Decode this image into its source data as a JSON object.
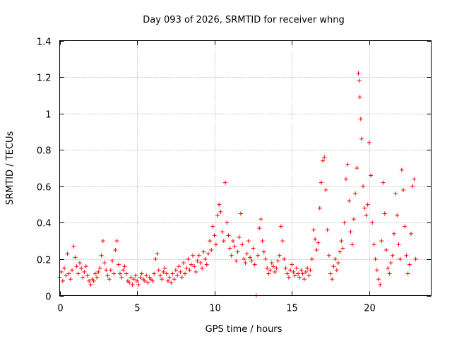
{
  "chart_data": {
    "type": "scatter",
    "title": "Day 093 of 2026, SRMTID for receiver whng",
    "xlabel": "GPS time / hours",
    "ylabel": "SRMTID / TECUs",
    "xlim": [
      0,
      24
    ],
    "ylim": [
      0,
      1.4
    ],
    "xticks": [
      0,
      5,
      10,
      15,
      20
    ],
    "xtick_labels": [
      "0",
      "5",
      "10",
      "15",
      "20"
    ],
    "yticks": [
      0,
      0.2,
      0.4,
      0.6,
      0.8,
      1,
      1.2,
      1.4
    ],
    "ytick_labels": [
      "0",
      "0.2",
      "0.4",
      "0.6",
      "0.8",
      "1",
      "1.2",
      "1.4"
    ],
    "grid": true,
    "marker": "+",
    "series": [
      {
        "name": "SRMTID",
        "color": "#ff0000",
        "points": [
          [
            0.0,
            0.1
          ],
          [
            0.1,
            0.13
          ],
          [
            0.2,
            0.08
          ],
          [
            0.3,
            0.15
          ],
          [
            0.4,
            0.11
          ],
          [
            0.5,
            0.23
          ],
          [
            0.6,
            0.12
          ],
          [
            0.7,
            0.09
          ],
          [
            0.8,
            0.14
          ],
          [
            0.9,
            0.27
          ],
          [
            1.0,
            0.21
          ],
          [
            1.1,
            0.16
          ],
          [
            1.2,
            0.12
          ],
          [
            1.3,
            0.18
          ],
          [
            1.4,
            0.15
          ],
          [
            1.5,
            0.1
          ],
          [
            1.6,
            0.13
          ],
          [
            1.7,
            0.16
          ],
          [
            1.8,
            0.11
          ],
          [
            1.9,
            0.08
          ],
          [
            2.0,
            0.06
          ],
          [
            2.1,
            0.09
          ],
          [
            2.2,
            0.08
          ],
          [
            2.3,
            0.12
          ],
          [
            2.4,
            0.1
          ],
          [
            2.5,
            0.13
          ],
          [
            2.6,
            0.15
          ],
          [
            2.7,
            0.22
          ],
          [
            2.8,
            0.3
          ],
          [
            2.9,
            0.18
          ],
          [
            3.0,
            0.14
          ],
          [
            3.1,
            0.11
          ],
          [
            3.2,
            0.09
          ],
          [
            3.3,
            0.14
          ],
          [
            3.4,
            0.19
          ],
          [
            3.5,
            0.12
          ],
          [
            3.6,
            0.25
          ],
          [
            3.7,
            0.3
          ],
          [
            3.8,
            0.17
          ],
          [
            3.9,
            0.12
          ],
          [
            4.0,
            0.1
          ],
          [
            4.1,
            0.14
          ],
          [
            4.2,
            0.16
          ],
          [
            4.3,
            0.12
          ],
          [
            4.4,
            0.08
          ],
          [
            4.5,
            0.07
          ],
          [
            4.6,
            0.1
          ],
          [
            4.7,
            0.06
          ],
          [
            4.8,
            0.09
          ],
          [
            4.9,
            0.11
          ],
          [
            5.0,
            0.08
          ],
          [
            5.1,
            0.06
          ],
          [
            5.2,
            0.1
          ],
          [
            5.3,
            0.12
          ],
          [
            5.4,
            0.09
          ],
          [
            5.5,
            0.08
          ],
          [
            5.6,
            0.11
          ],
          [
            5.7,
            0.07
          ],
          [
            5.8,
            0.1
          ],
          [
            5.9,
            0.09
          ],
          [
            6.0,
            0.08
          ],
          [
            6.1,
            0.12
          ],
          [
            6.2,
            0.2
          ],
          [
            6.3,
            0.23
          ],
          [
            6.4,
            0.14
          ],
          [
            6.5,
            0.11
          ],
          [
            6.6,
            0.09
          ],
          [
            6.7,
            0.13
          ],
          [
            6.8,
            0.15
          ],
          [
            6.9,
            0.12
          ],
          [
            7.0,
            0.08
          ],
          [
            7.1,
            0.1
          ],
          [
            7.2,
            0.07
          ],
          [
            7.3,
            0.12
          ],
          [
            7.4,
            0.09
          ],
          [
            7.5,
            0.14
          ],
          [
            7.6,
            0.11
          ],
          [
            7.7,
            0.16
          ],
          [
            7.8,
            0.13
          ],
          [
            7.9,
            0.1
          ],
          [
            8.0,
            0.18
          ],
          [
            8.1,
            0.12
          ],
          [
            8.2,
            0.15
          ],
          [
            8.3,
            0.2
          ],
          [
            8.4,
            0.14
          ],
          [
            8.5,
            0.17
          ],
          [
            8.6,
            0.22
          ],
          [
            8.7,
            0.16
          ],
          [
            8.8,
            0.13
          ],
          [
            8.9,
            0.19
          ],
          [
            9.0,
            0.22
          ],
          [
            9.1,
            0.18
          ],
          [
            9.2,
            0.15
          ],
          [
            9.3,
            0.24
          ],
          [
            9.4,
            0.2
          ],
          [
            9.5,
            0.17
          ],
          [
            9.6,
            0.23
          ],
          [
            9.7,
            0.3
          ],
          [
            9.8,
            0.25
          ],
          [
            9.9,
            0.38
          ],
          [
            10.0,
            0.33
          ],
          [
            10.1,
            0.28
          ],
          [
            10.2,
            0.44
          ],
          [
            10.3,
            0.5
          ],
          [
            10.4,
            0.46
          ],
          [
            10.5,
            0.35
          ],
          [
            10.6,
            0.3
          ],
          [
            10.7,
            0.62
          ],
          [
            10.8,
            0.4
          ],
          [
            10.9,
            0.33
          ],
          [
            11.0,
            0.26
          ],
          [
            11.1,
            0.22
          ],
          [
            11.2,
            0.3
          ],
          [
            11.3,
            0.27
          ],
          [
            11.4,
            0.19
          ],
          [
            11.5,
            0.24
          ],
          [
            11.6,
            0.32
          ],
          [
            11.7,
            0.45
          ],
          [
            11.8,
            0.28
          ],
          [
            11.9,
            0.2
          ],
          [
            12.0,
            0.18
          ],
          [
            12.1,
            0.23
          ],
          [
            12.2,
            0.3
          ],
          [
            12.3,
            0.21
          ],
          [
            12.4,
            0.19
          ],
          [
            12.5,
            0.26
          ],
          [
            12.6,
            0.17
          ],
          [
            12.7,
            0.0
          ],
          [
            12.8,
            0.22
          ],
          [
            12.9,
            0.37
          ],
          [
            13.0,
            0.42
          ],
          [
            13.1,
            0.3
          ],
          [
            13.2,
            0.24
          ],
          [
            13.3,
            0.2
          ],
          [
            13.4,
            0.15
          ],
          [
            13.5,
            0.12
          ],
          [
            13.6,
            0.14
          ],
          [
            13.7,
            0.18
          ],
          [
            13.8,
            0.16
          ],
          [
            13.9,
            0.13
          ],
          [
            14.0,
            0.15
          ],
          [
            14.1,
            0.19
          ],
          [
            14.2,
            0.22
          ],
          [
            14.3,
            0.38
          ],
          [
            14.4,
            0.3
          ],
          [
            14.5,
            0.2
          ],
          [
            14.6,
            0.15
          ],
          [
            14.7,
            0.12
          ],
          [
            14.8,
            0.1
          ],
          [
            14.9,
            0.14
          ],
          [
            15.0,
            0.17
          ],
          [
            15.1,
            0.13
          ],
          [
            15.2,
            0.11
          ],
          [
            15.3,
            0.15
          ],
          [
            15.4,
            0.12
          ],
          [
            15.5,
            0.1
          ],
          [
            15.6,
            0.14
          ],
          [
            15.7,
            0.12
          ],
          [
            15.8,
            0.09
          ],
          [
            15.9,
            0.13
          ],
          [
            16.0,
            0.15
          ],
          [
            16.1,
            0.11
          ],
          [
            16.2,
            0.14
          ],
          [
            16.3,
            0.2
          ],
          [
            16.4,
            0.36
          ],
          [
            16.5,
            0.31
          ],
          [
            16.6,
            0.25
          ],
          [
            16.7,
            0.29
          ],
          [
            16.8,
            0.48
          ],
          [
            16.9,
            0.62
          ],
          [
            17.0,
            0.74
          ],
          [
            17.1,
            0.76
          ],
          [
            17.2,
            0.58
          ],
          [
            17.3,
            0.36
          ],
          [
            17.4,
            0.22
          ],
          [
            17.5,
            0.12
          ],
          [
            17.6,
            0.09
          ],
          [
            17.7,
            0.16
          ],
          [
            17.8,
            0.2
          ],
          [
            17.9,
            0.14
          ],
          [
            18.0,
            0.18
          ],
          [
            18.1,
            0.24
          ],
          [
            18.2,
            0.3
          ],
          [
            18.3,
            0.26
          ],
          [
            18.4,
            0.4
          ],
          [
            18.5,
            0.64
          ],
          [
            18.6,
            0.72
          ],
          [
            18.7,
            0.52
          ],
          [
            18.8,
            0.35
          ],
          [
            18.9,
            0.28
          ],
          [
            19.0,
            0.42
          ],
          [
            19.1,
            0.56
          ],
          [
            19.2,
            0.7
          ],
          [
            19.3,
            1.22
          ],
          [
            19.35,
            1.18
          ],
          [
            19.4,
            1.09
          ],
          [
            19.45,
            0.97
          ],
          [
            19.5,
            0.86
          ],
          [
            19.6,
            0.6
          ],
          [
            19.7,
            0.48
          ],
          [
            19.8,
            0.44
          ],
          [
            19.9,
            0.5
          ],
          [
            20.0,
            0.84
          ],
          [
            20.1,
            0.66
          ],
          [
            20.2,
            0.4
          ],
          [
            20.3,
            0.28
          ],
          [
            20.4,
            0.2
          ],
          [
            20.5,
            0.14
          ],
          [
            20.6,
            0.09
          ],
          [
            20.7,
            0.06
          ],
          [
            20.8,
            0.3
          ],
          [
            20.9,
            0.62
          ],
          [
            21.0,
            0.45
          ],
          [
            21.1,
            0.25
          ],
          [
            21.2,
            0.15
          ],
          [
            21.3,
            0.12
          ],
          [
            21.4,
            0.18
          ],
          [
            21.5,
            0.22
          ],
          [
            21.6,
            0.34
          ],
          [
            21.7,
            0.56
          ],
          [
            21.8,
            0.44
          ],
          [
            21.9,
            0.28
          ],
          [
            22.0,
            0.2
          ],
          [
            22.1,
            0.69
          ],
          [
            22.2,
            0.58
          ],
          [
            22.3,
            0.38
          ],
          [
            22.4,
            0.22
          ],
          [
            22.5,
            0.12
          ],
          [
            22.6,
            0.17
          ],
          [
            22.7,
            0.34
          ],
          [
            22.8,
            0.6
          ],
          [
            22.9,
            0.64
          ],
          [
            23.0,
            0.2
          ]
        ]
      }
    ]
  }
}
